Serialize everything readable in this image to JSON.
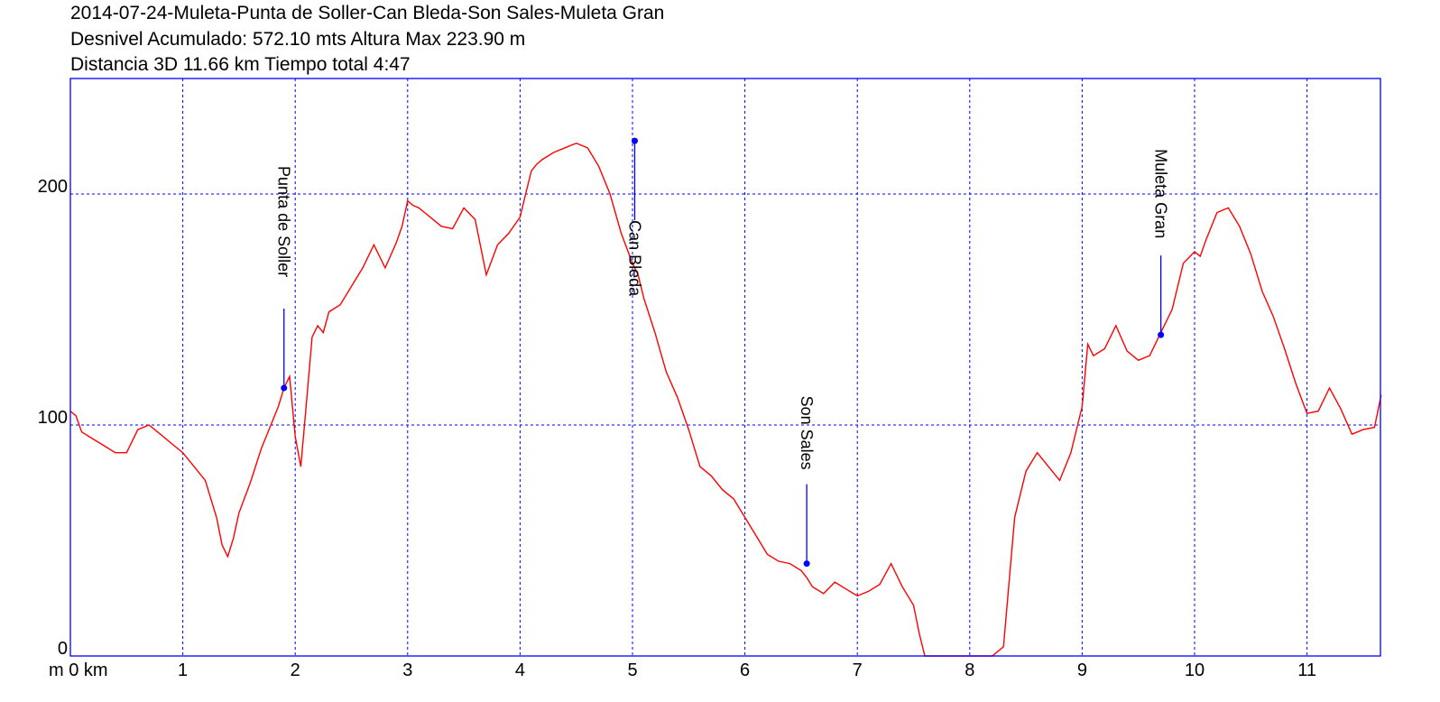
{
  "header": {
    "line1": "2014-07-24-Muleta-Punta de Soller-Can Bleda-Son Sales-Muleta Gran",
    "line2": "Desnivel Acumulado: 572.10 mts  Altura Max 223.90 m",
    "line3": "Distancia 3D 11.66 km  Tiempo total 4:47"
  },
  "chart_data": {
    "type": "line",
    "title": "2014-07-24-Muleta-Punta de Soller-Can Bleda-Son Sales-Muleta Gran",
    "xlabel": "km",
    "ylabel": "m",
    "xlim": [
      0,
      11.66
    ],
    "ylim": [
      0,
      250
    ],
    "x_ticks": [
      0,
      1,
      2,
      3,
      4,
      5,
      6,
      7,
      8,
      9,
      10,
      11
    ],
    "x_tick_labels": [
      "m 0 km",
      "1",
      "2",
      "3",
      "4",
      "5",
      "6",
      "7",
      "8",
      "9",
      "10",
      "11"
    ],
    "y_ticks": [
      0,
      100,
      200
    ],
    "grid": true,
    "colors": {
      "line": "#ff0000",
      "grid": "#0000ff",
      "frame": "#0000ff",
      "waypoint": "#0000ff"
    },
    "series": [
      {
        "x": [
          0,
          0.05,
          0.1,
          0.2,
          0.3,
          0.4,
          0.5,
          0.6,
          0.7,
          0.75,
          0.8,
          0.9,
          1.0,
          1.1,
          1.2,
          1.3,
          1.35,
          1.4,
          1.45,
          1.5,
          1.6,
          1.7,
          1.8,
          1.85,
          1.9,
          1.95,
          2.0,
          2.05,
          2.1,
          2.15,
          2.2,
          2.25,
          2.3,
          2.4,
          2.5,
          2.6,
          2.7,
          2.8,
          2.9,
          2.95,
          3.0,
          3.05,
          3.1,
          3.15,
          3.2,
          3.3,
          3.4,
          3.5,
          3.6,
          3.7,
          3.8,
          3.9,
          4.0,
          4.05,
          4.1,
          4.15,
          4.2,
          4.3,
          4.4,
          4.5,
          4.6,
          4.7,
          4.8,
          4.9,
          5.0,
          5.05,
          5.1,
          5.2,
          5.3,
          5.4,
          5.5,
          5.6,
          5.7,
          5.8,
          5.9,
          6.0,
          6.1,
          6.2,
          6.3,
          6.4,
          6.5,
          6.55,
          6.6,
          6.7,
          6.8,
          6.9,
          7.0,
          7.1,
          7.2,
          7.3,
          7.4,
          7.5,
          7.55,
          7.6,
          7.7,
          8.0,
          8.2,
          8.3,
          8.4,
          8.5,
          8.6,
          8.7,
          8.8,
          8.9,
          9.0,
          9.05,
          9.1,
          9.2,
          9.3,
          9.4,
          9.5,
          9.6,
          9.7,
          9.8,
          9.9,
          10.0,
          10.05,
          10.1,
          10.2,
          10.3,
          10.4,
          10.5,
          10.6,
          10.7,
          10.8,
          10.9,
          11.0,
          11.1,
          11.2,
          11.3,
          11.4,
          11.5,
          11.6,
          11.66
        ],
        "values": [
          106,
          104,
          97,
          94,
          91,
          88,
          88,
          98,
          100,
          98,
          96,
          92,
          88,
          82,
          76,
          60,
          48,
          43,
          51,
          62,
          75,
          90,
          102,
          108,
          116,
          121,
          95,
          82,
          110,
          138,
          143,
          140,
          149,
          152,
          160,
          168,
          178,
          168,
          179,
          186,
          197,
          195,
          194,
          192,
          190,
          186,
          185,
          194,
          189,
          165,
          178,
          183,
          190,
          200,
          210,
          213,
          215,
          218,
          220,
          222,
          220,
          212,
          200,
          183,
          170,
          165,
          155,
          140,
          123,
          112,
          98,
          82,
          78,
          72,
          68,
          60,
          52,
          44,
          41,
          40,
          37,
          34,
          30,
          27,
          32,
          29,
          26,
          28,
          31,
          40,
          30,
          22,
          10,
          0,
          0,
          0,
          0,
          4,
          60,
          80,
          88,
          82,
          76,
          88,
          108,
          135,
          130,
          133,
          143,
          132,
          128,
          130,
          140,
          150,
          170,
          175,
          173,
          180,
          192,
          194,
          186,
          174,
          158,
          147,
          133,
          118,
          105,
          106,
          116,
          107,
          96,
          98,
          99,
          113
        ]
      }
    ],
    "waypoints": [
      {
        "name": "Punta de Soller",
        "x": 1.9,
        "y": 116
      },
      {
        "name": "Can Bleda",
        "x": 5.02,
        "y": 223
      },
      {
        "name": "Son Sales",
        "x": 6.55,
        "y": 40
      },
      {
        "name": "Muleta Gran",
        "x": 9.7,
        "y": 139
      }
    ]
  }
}
